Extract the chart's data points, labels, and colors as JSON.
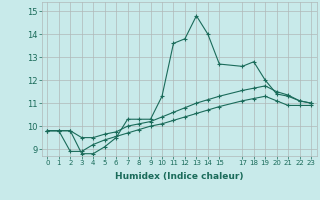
{
  "xlabel": "Humidex (Indice chaleur)",
  "background_color": "#c8eaea",
  "grid_color": "#b0b8b8",
  "line_color": "#1a6b5a",
  "x_ticks": [
    0,
    1,
    2,
    3,
    4,
    5,
    6,
    7,
    8,
    9,
    10,
    11,
    12,
    13,
    14,
    15,
    17,
    18,
    19,
    20,
    21,
    22,
    23
  ],
  "y_ticks": [
    9,
    10,
    11,
    12,
    13,
    14,
    15
  ],
  "ylim": [
    8.7,
    15.4
  ],
  "xlim": [
    -0.5,
    23.5
  ],
  "line1_x": [
    0,
    1,
    2,
    3,
    4,
    5,
    6,
    7,
    8,
    9,
    10,
    11,
    12,
    13,
    14,
    15,
    17,
    18,
    19,
    20,
    21,
    22,
    23
  ],
  "line1_y": [
    9.8,
    9.8,
    9.8,
    8.8,
    8.8,
    9.1,
    9.5,
    10.3,
    10.3,
    10.3,
    11.3,
    13.6,
    13.8,
    14.8,
    14.0,
    12.7,
    12.6,
    12.8,
    12.0,
    11.4,
    11.3,
    11.1,
    11.0
  ],
  "line2_x": [
    0,
    1,
    2,
    3,
    4,
    5,
    6,
    7,
    8,
    9,
    10,
    11,
    12,
    13,
    14,
    15,
    17,
    18,
    19,
    20,
    21,
    22,
    23
  ],
  "line2_y": [
    9.8,
    9.8,
    9.8,
    9.5,
    9.5,
    9.65,
    9.75,
    10.0,
    10.1,
    10.2,
    10.4,
    10.6,
    10.8,
    11.0,
    11.15,
    11.3,
    11.55,
    11.65,
    11.75,
    11.5,
    11.35,
    11.1,
    11.0
  ],
  "line3_x": [
    0,
    1,
    2,
    3,
    4,
    5,
    6,
    7,
    8,
    9,
    10,
    11,
    12,
    13,
    14,
    15,
    17,
    18,
    19,
    20,
    21,
    22,
    23
  ],
  "line3_y": [
    9.8,
    9.8,
    8.9,
    8.9,
    9.2,
    9.4,
    9.55,
    9.7,
    9.85,
    10.0,
    10.1,
    10.25,
    10.4,
    10.55,
    10.7,
    10.85,
    11.1,
    11.2,
    11.3,
    11.1,
    10.9,
    10.9,
    10.9
  ]
}
